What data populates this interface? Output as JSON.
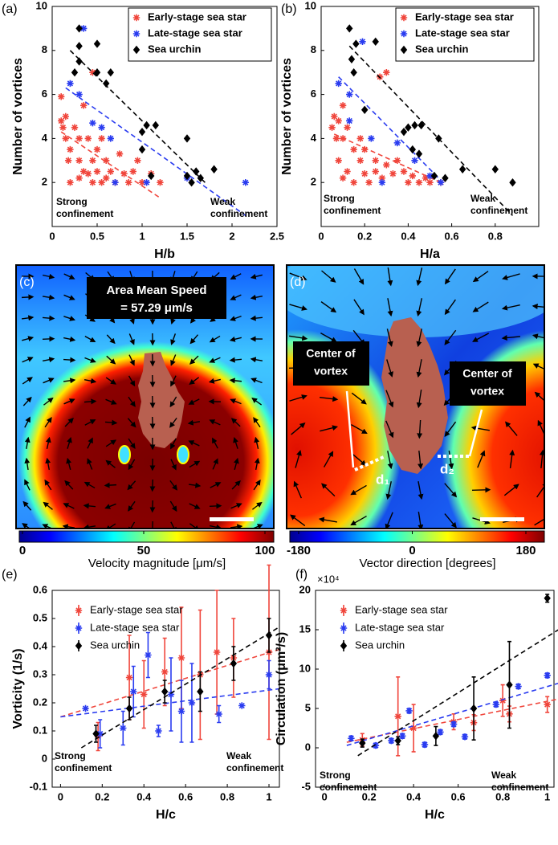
{
  "chart_data": [
    {
      "type": "scatter",
      "panel_label": "(a)",
      "xlabel": "H/b",
      "ylabel": "Number of vortices",
      "xlim": [
        0,
        2.5
      ],
      "xticks": [
        0,
        0.5,
        1,
        1.5,
        2,
        2.5
      ],
      "ylim": [
        0,
        10
      ],
      "yticks": [
        2,
        4,
        6,
        8,
        10
      ],
      "series": [
        {
          "name": "Early-stage sea star",
          "color": "#f0463c",
          "marker": "star",
          "x": [
            0.1,
            0.1,
            0.12,
            0.15,
            0.15,
            0.18,
            0.2,
            0.2,
            0.25,
            0.3,
            0.3,
            0.3,
            0.35,
            0.35,
            0.4,
            0.4,
            0.45,
            0.45,
            0.5,
            0.5,
            0.55,
            0.55,
            0.6,
            0.6,
            0.65,
            0.7,
            0.75,
            0.8,
            0.85,
            0.9,
            0.95,
            1.0,
            1.1,
            1.2,
            0.45
          ],
          "values": [
            5.9,
            4.8,
            4.5,
            5,
            4,
            3,
            3.5,
            2,
            4.5,
            4,
            3,
            2.2,
            2.5,
            5.5,
            4,
            2.4,
            3,
            2,
            3.5,
            2.5,
            4,
            2,
            3,
            2.2,
            2.5,
            2,
            3.3,
            2.4,
            2,
            2.5,
            3,
            2,
            2.4,
            2,
            7
          ],
          "fit": {
            "x": [
              0.1,
              1.2
            ],
            "values": [
              4.3,
              1.3
            ]
          }
        },
        {
          "name": "Late-stage sea star",
          "color": "#2a3cf0",
          "marker": "star",
          "x": [
            0.2,
            0.35,
            0.3,
            0.45,
            0.55,
            0.65,
            0.7,
            1.05,
            1.5,
            2.15
          ],
          "values": [
            6.5,
            9,
            6,
            4.7,
            4.5,
            4,
            2,
            2,
            2.2,
            2
          ],
          "fit": {
            "x": [
              0.15,
              2.15
            ],
            "values": [
              6.3,
              0.5
            ]
          }
        },
        {
          "name": "Sea urchin",
          "color": "#000000",
          "marker": "diamond",
          "x": [
            0.25,
            0.3,
            0.3,
            0.3,
            0.5,
            0.5,
            0.6,
            0.65,
            1.0,
            1.0,
            1.05,
            1.1,
            1.15,
            1.5,
            1.5,
            1.55,
            1.6,
            1.65,
            1.8
          ],
          "values": [
            7,
            9,
            8.2,
            7.5,
            8.3,
            7,
            6.5,
            7,
            4.3,
            3.5,
            4.6,
            2.3,
            4.6,
            4,
            2.3,
            2,
            2.5,
            2.2,
            2.6
          ],
          "fit": {
            "x": [
              0.2,
              1.7
            ],
            "values": [
              8,
              2
            ]
          }
        }
      ],
      "annotations": {
        "strong": [
          "Strong",
          "confinement"
        ],
        "weak": [
          "Weak",
          "confinement"
        ]
      }
    },
    {
      "type": "scatter",
      "panel_label": "(b)",
      "xlabel": "H/a",
      "ylabel": "Number of vortices",
      "xlim": [
        0,
        1
      ],
      "xticks": [
        0,
        0.2,
        0.4,
        0.6,
        0.8
      ],
      "ylim": [
        0,
        10
      ],
      "yticks": [
        2,
        4,
        6,
        8,
        10
      ],
      "series": [
        {
          "name": "Early-stage sea star",
          "color": "#f0463c",
          "marker": "star",
          "x": [
            0.05,
            0.06,
            0.07,
            0.08,
            0.08,
            0.1,
            0.1,
            0.12,
            0.12,
            0.15,
            0.15,
            0.18,
            0.18,
            0.2,
            0.2,
            0.22,
            0.25,
            0.25,
            0.28,
            0.3,
            0.3,
            0.33,
            0.35,
            0.38,
            0.4,
            0.42,
            0.45,
            0.48,
            0.5,
            0.55,
            0.1,
            0.27
          ],
          "values": [
            4.5,
            5,
            4,
            4.8,
            3,
            5.5,
            4,
            4.5,
            2.5,
            3.5,
            2,
            4,
            3,
            3.5,
            2.4,
            2,
            3,
            2.5,
            2.2,
            7,
            2.8,
            2.4,
            3,
            2.5,
            2,
            2.3,
            2,
            2.2,
            2,
            2,
            2.2,
            6.8
          ],
          "fit": {
            "x": [
              0.06,
              0.55
            ],
            "values": [
              4.2,
              2
            ]
          }
        },
        {
          "name": "Late-stage sea star",
          "color": "#2a3cf0",
          "marker": "star",
          "x": [
            0.08,
            0.13,
            0.19,
            0.13,
            0.23,
            0.35,
            0.43,
            0.5,
            0.28,
            0.55
          ],
          "values": [
            6.5,
            6,
            8.4,
            4.8,
            4,
            3.8,
            3,
            2.3,
            2,
            2
          ],
          "fit": {
            "x": [
              0.08,
              0.55
            ],
            "values": [
              6.8,
              2.1
            ]
          }
        },
        {
          "name": "Sea urchin",
          "color": "#000000",
          "marker": "diamond",
          "x": [
            0.13,
            0.14,
            0.15,
            0.16,
            0.25,
            0.2,
            0.38,
            0.4,
            0.42,
            0.43,
            0.45,
            0.46,
            0.52,
            0.54,
            0.57,
            0.65,
            0.8,
            0.88
          ],
          "values": [
            9,
            7.6,
            7,
            8.3,
            8.4,
            5.3,
            4.3,
            4.5,
            3.5,
            4.6,
            3.3,
            4.6,
            2.3,
            4,
            2.2,
            2.6,
            2.6,
            2
          ],
          "fit": {
            "x": [
              0.13,
              0.88
            ],
            "values": [
              8.2,
              0.5
            ]
          }
        }
      ],
      "annotations": {
        "strong": [
          "Strong",
          "confinement"
        ],
        "weak": [
          "Weak",
          "confinement"
        ]
      }
    },
    {
      "type": "image",
      "panel_label": "(c)",
      "colorbar": {
        "lim": [
          0,
          100
        ],
        "ticks": [
          0,
          50,
          100
        ],
        "label": "Velocity magnitude [μm/s]"
      },
      "annotations": {
        "box": [
          "Area Mean Speed",
          "= 57.29 μm/s"
        ]
      }
    },
    {
      "type": "image",
      "panel_label": "(d)",
      "colorbar": {
        "lim": [
          -180,
          180
        ],
        "ticks": [
          -180,
          0,
          180
        ],
        "label": "Vector direction [degrees]"
      },
      "annotations": {
        "left": [
          "Center of",
          "vortex"
        ],
        "right": [
          "Center of",
          "vortex"
        ],
        "d1": "d₁",
        "d2": "d₂"
      }
    },
    {
      "type": "scatter",
      "panel_label": "(e)",
      "xlabel": "H/c",
      "ylabel": "Vorticity (1/s)",
      "xlim": [
        -0.04,
        1.05
      ],
      "xticks": [
        0,
        0.2,
        0.4,
        0.6,
        0.8,
        1
      ],
      "ylim": [
        -0.1,
        0.6
      ],
      "yticks": [
        -0.1,
        0,
        0.1,
        0.2,
        0.3,
        0.4,
        0.5,
        0.6
      ],
      "series": [
        {
          "name": "Early-stage sea star",
          "color": "#f0463c",
          "marker": "star",
          "x": [
            0.18,
            0.33,
            0.4,
            0.5,
            0.58,
            0.67,
            0.75,
            0.83,
            1.0
          ],
          "values": [
            0.08,
            0.29,
            0.23,
            0.31,
            0.36,
            0.3,
            0.38,
            0.36,
            0.38
          ],
          "errors": [
            0.05,
            0.15,
            0.12,
            0.12,
            0.18,
            0.23,
            0.22,
            0.14,
            0.31
          ],
          "fit": {
            "x": [
              0,
              1.05
            ],
            "values": [
              0.15,
              0.39
            ]
          }
        },
        {
          "name": "Late-stage sea star",
          "color": "#2a3cf0",
          "marker": "star",
          "x": [
            0.12,
            0.19,
            0.3,
            0.35,
            0.42,
            0.47,
            0.53,
            0.58,
            0.63,
            0.76,
            0.87,
            1.0
          ],
          "values": [
            0.18,
            0.09,
            0.11,
            0.24,
            0.37,
            0.1,
            0.23,
            0.17,
            0.2,
            0.16,
            0.19,
            0.3
          ],
          "errors": [
            0,
            0.05,
            0.06,
            0.09,
            0.08,
            0.02,
            0.13,
            0.11,
            0.14,
            0.03,
            0,
            0.05
          ],
          "fit": {
            "x": [
              0,
              1.05
            ],
            "values": [
              0.15,
              0.25
            ]
          }
        },
        {
          "name": "Sea urchin",
          "color": "#000000",
          "marker": "diamond",
          "x": [
            0.17,
            0.33,
            0.5,
            0.67,
            0.83,
            1.0
          ],
          "values": [
            0.09,
            0.18,
            0.24,
            0.24,
            0.34,
            0.44
          ],
          "errors": [
            0.03,
            0.04,
            0.04,
            0.07,
            0.06,
            0.06
          ],
          "fit": {
            "x": [
              0.1,
              1.05
            ],
            "values": [
              0.04,
              0.47
            ]
          }
        }
      ],
      "annotations": {
        "strong": [
          "Strong",
          "confinement"
        ],
        "weak": [
          "Weak",
          "confinement"
        ]
      }
    },
    {
      "type": "scatter",
      "panel_label": "(f)",
      "xlabel": "H/c",
      "ylabel": "Circulation (μm²/s)",
      "y_multiplier": "×10⁴",
      "xlim": [
        -0.04,
        1.03
      ],
      "xticks": [
        0,
        0.2,
        0.4,
        0.6,
        0.8,
        1
      ],
      "ylim": [
        -5,
        20
      ],
      "yticks": [
        -5,
        0,
        5,
        10,
        15,
        20
      ],
      "series": [
        {
          "name": "Early-stage sea star",
          "color": "#f0463c",
          "marker": "star",
          "x": [
            0.17,
            0.33,
            0.4,
            0.58,
            0.67,
            0.8,
            0.83,
            1.0
          ],
          "values": [
            1,
            4,
            2.5,
            3.3,
            3.2,
            6,
            4.3,
            5.5
          ],
          "errors": [
            0.8,
            5,
            3,
            1,
            1,
            2,
            1,
            1
          ],
          "fit": {
            "x": [
              0.1,
              1.05
            ],
            "values": [
              0.7,
              6.2
            ]
          }
        },
        {
          "name": "Late-stage sea star",
          "color": "#2a3cf0",
          "marker": "star",
          "x": [
            0.12,
            0.23,
            0.3,
            0.35,
            0.38,
            0.45,
            0.52,
            0.58,
            0.63,
            0.77,
            0.87,
            1.0
          ],
          "values": [
            1.2,
            0.3,
            0.9,
            1.5,
            4.7,
            0.4,
            2,
            3,
            1.4,
            5.5,
            7.8,
            9.2
          ],
          "errors": [
            0.3,
            0.3,
            0.3,
            0.3,
            0.3,
            0.3,
            0.3,
            0.3,
            0.3,
            0.3,
            0.3,
            0.3
          ],
          "fit": {
            "x": [
              0.1,
              1.05
            ],
            "values": [
              0.3,
              8.2
            ]
          }
        },
        {
          "name": "Sea urchin",
          "color": "#000000",
          "marker": "diamond",
          "x": [
            0.17,
            0.33,
            0.5,
            0.67,
            0.83,
            1.0
          ],
          "values": [
            0.6,
            0.9,
            1.5,
            5,
            8,
            19
          ],
          "errors": [
            0.5,
            0.5,
            1.2,
            4,
            5.5,
            0.5
          ],
          "fit": {
            "x": [
              0.15,
              1.05
            ],
            "values": [
              -1,
              15
            ]
          }
        }
      ],
      "annotations": {
        "strong": [
          "Strong",
          "confinement"
        ],
        "weak": [
          "Weak",
          "confinement"
        ]
      }
    }
  ]
}
